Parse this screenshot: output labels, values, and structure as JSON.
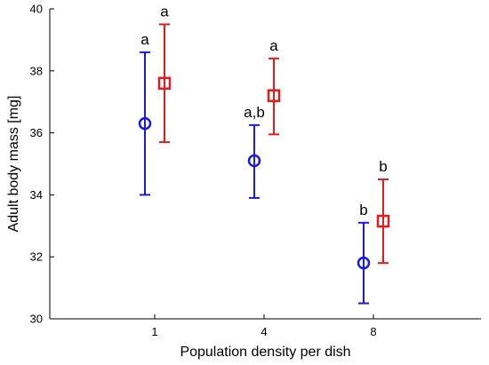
{
  "chart_data": {
    "type": "scatter",
    "xlabel": "Population density per dish",
    "ylabel": "Adult body mass [mg]",
    "ylim": [
      30,
      40
    ],
    "yticks": [
      30,
      32,
      34,
      36,
      38,
      40
    ],
    "categories": [
      "1",
      "4",
      "8"
    ],
    "grid": false,
    "series": [
      {
        "marker": "circle",
        "color": "#1a1ae6",
        "points": [
          {
            "category": "1",
            "mean": 36.3,
            "lower": 34.0,
            "upper": 38.6,
            "label": "a"
          },
          {
            "category": "4",
            "mean": 35.1,
            "lower": 33.9,
            "upper": 36.25,
            "label": "a,b"
          },
          {
            "category": "8",
            "mean": 31.8,
            "lower": 30.5,
            "upper": 33.1,
            "label": "b"
          }
        ]
      },
      {
        "marker": "square",
        "color": "#e61a1a",
        "points": [
          {
            "category": "1",
            "mean": 37.6,
            "lower": 35.7,
            "upper": 39.5,
            "label": "a"
          },
          {
            "category": "4",
            "mean": 37.2,
            "lower": 35.95,
            "upper": 38.4,
            "label": "a"
          },
          {
            "category": "8",
            "mean": 33.15,
            "lower": 31.8,
            "upper": 34.5,
            "label": "b"
          }
        ]
      }
    ]
  }
}
